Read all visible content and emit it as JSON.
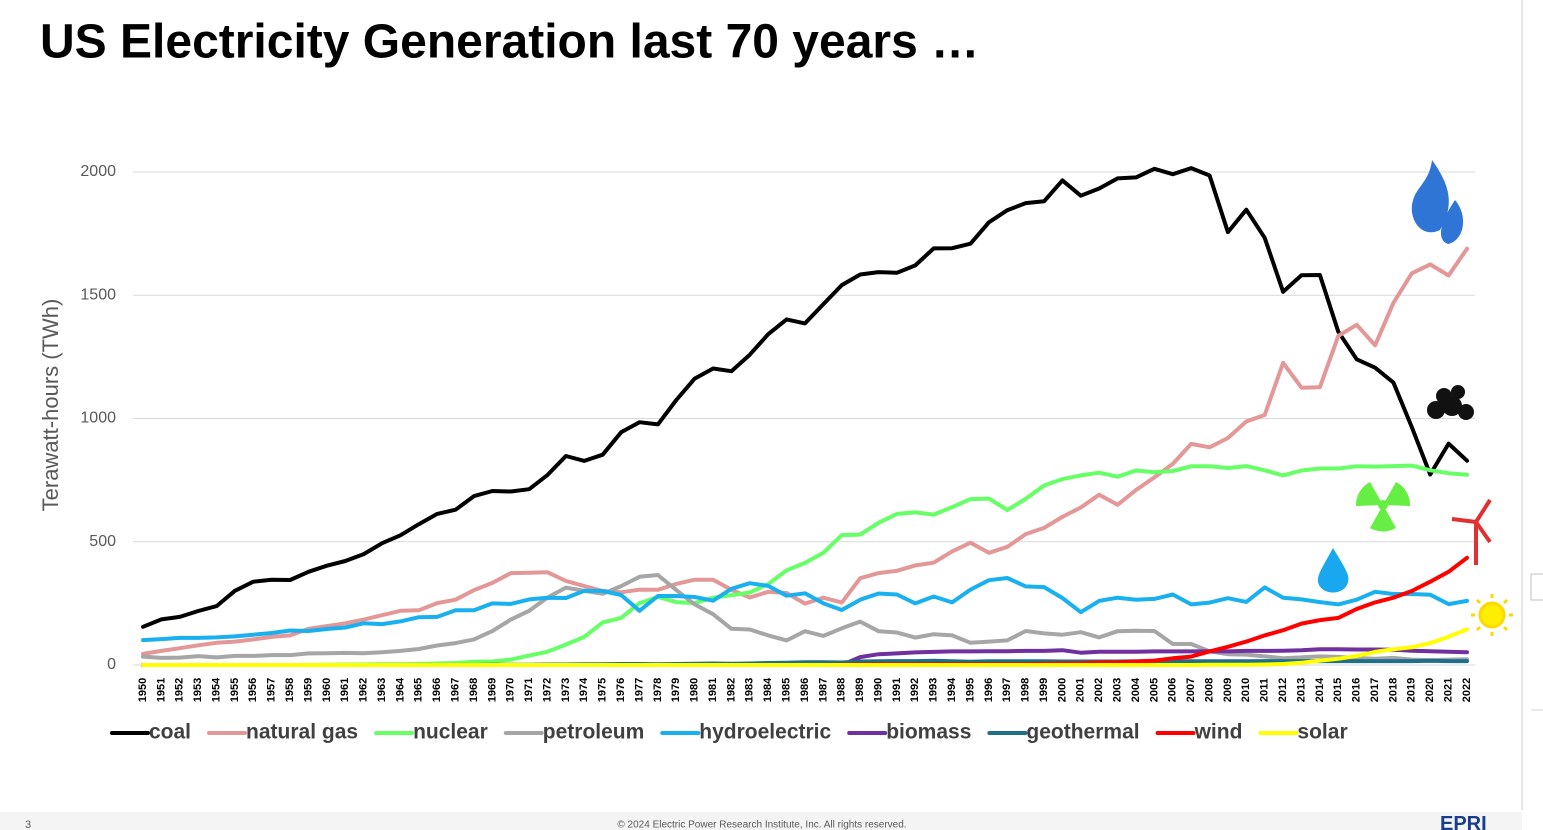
{
  "slide": {
    "title": "US Electricity Generation last 70 years …",
    "page_number": "3",
    "footer": "© 2024 Electric Power Research Institute, Inc. All rights reserved.",
    "logo": "EPRI"
  },
  "chart_data": {
    "type": "line",
    "y_label": "Terawatt-hours (TWh)",
    "categories": [
      1950,
      1951,
      1952,
      1953,
      1954,
      1955,
      1956,
      1957,
      1958,
      1959,
      1960,
      1961,
      1962,
      1963,
      1964,
      1965,
      1966,
      1967,
      1968,
      1969,
      1970,
      1971,
      1972,
      1973,
      1974,
      1975,
      1976,
      1977,
      1978,
      1979,
      1980,
      1981,
      1982,
      1983,
      1984,
      1985,
      1986,
      1987,
      1988,
      1989,
      1990,
      1991,
      1992,
      1993,
      1994,
      1995,
      1996,
      1997,
      1998,
      1999,
      2000,
      2001,
      2002,
      2003,
      2004,
      2005,
      2006,
      2007,
      2008,
      2009,
      2010,
      2011,
      2012,
      2013,
      2014,
      2015,
      2016,
      2017,
      2018,
      2019,
      2020,
      2021,
      2022
    ],
    "ylim": [
      0,
      2000
    ],
    "yticks": [
      0,
      500,
      1000,
      1500,
      2000
    ],
    "grid": true,
    "legend": "bottom",
    "series": [
      {
        "name": "coal",
        "color": "#000000",
        "values": [
          155,
          185,
          195,
          219,
          239,
          301,
          338,
          346,
          345,
          378,
          403,
          422,
          450,
          494,
          526,
          571,
          613,
          630,
          685,
          706,
          704,
          713,
          771,
          848,
          828,
          853,
          944,
          985,
          976,
          1075,
          1162,
          1203,
          1192,
          1259,
          1342,
          1402,
          1386,
          1464,
          1541,
          1584,
          1594,
          1591,
          1621,
          1690,
          1691,
          1709,
          1796,
          1845,
          1874,
          1881,
          1966,
          1904,
          1933,
          1974,
          1978,
          2013,
          1991,
          2016,
          1986,
          1756,
          1847,
          1733,
          1514,
          1581,
          1582,
          1352,
          1240,
          1206,
          1146,
          965,
          773,
          898,
          829
        ]
      },
      {
        "name": "natural gas",
        "color": "#e39797",
        "values": [
          45,
          57,
          68,
          80,
          90,
          95,
          104,
          114,
          120,
          147,
          158,
          169,
          184,
          202,
          220,
          222,
          251,
          265,
          304,
          333,
          373,
          374,
          376,
          341,
          320,
          300,
          295,
          306,
          305,
          329,
          346,
          346,
          305,
          274,
          297,
          292,
          249,
          273,
          253,
          352,
          373,
          382,
          404,
          415,
          461,
          496,
          455,
          479,
          531,
          556,
          601,
          639,
          691,
          650,
          710,
          761,
          816,
          897,
          883,
          921,
          988,
          1014,
          1226,
          1125,
          1127,
          1335,
          1380,
          1297,
          1469,
          1589,
          1625,
          1580,
          1689
        ]
      },
      {
        "name": "nuclear",
        "color": "#66ff66",
        "values": [
          0,
          0,
          0,
          0,
          0,
          0,
          0,
          0,
          0,
          0,
          1,
          2,
          2,
          3,
          3,
          4,
          6,
          8,
          13,
          14,
          22,
          38,
          54,
          83,
          114,
          173,
          191,
          251,
          276,
          255,
          251,
          273,
          283,
          294,
          328,
          384,
          414,
          455,
          527,
          529,
          577,
          613,
          619,
          610,
          640,
          673,
          675,
          629,
          674,
          728,
          754,
          769,
          780,
          764,
          789,
          782,
          787,
          806,
          806,
          799,
          807,
          790,
          769,
          789,
          797,
          797,
          806,
          805,
          807,
          809,
          790,
          778,
          772
        ]
      },
      {
        "name": "petroleum",
        "color": "#a6a6a6",
        "values": [
          34,
          29,
          30,
          36,
          31,
          37,
          37,
          40,
          40,
          47,
          48,
          49,
          48,
          52,
          57,
          65,
          79,
          89,
          104,
          138,
          184,
          220,
          274,
          314,
          301,
          289,
          320,
          358,
          365,
          304,
          246,
          206,
          147,
          144,
          120,
          100,
          137,
          118,
          149,
          176,
          137,
          132,
          111,
          125,
          120,
          90,
          95,
          100,
          138,
          128,
          123,
          133,
          112,
          137,
          139,
          138,
          85,
          85,
          55,
          44,
          42,
          35,
          27,
          31,
          35,
          33,
          28,
          25,
          29,
          22,
          20,
          22,
          23
        ]
      },
      {
        "name": "hydroelectric",
        "color": "#19b0f0",
        "values": [
          101,
          105,
          110,
          110,
          112,
          116,
          123,
          130,
          140,
          138,
          146,
          152,
          169,
          166,
          177,
          194,
          195,
          222,
          222,
          250,
          248,
          266,
          273,
          272,
          301,
          300,
          284,
          220,
          280,
          280,
          276,
          261,
          309,
          332,
          321,
          281,
          291,
          250,
          223,
          265,
          290,
          286,
          250,
          278,
          254,
          306,
          344,
          353,
          319,
          316,
          272,
          214,
          260,
          273,
          265,
          268,
          286,
          246,
          253,
          271,
          256,
          315,
          273,
          266,
          255,
          246,
          265,
          297,
          288,
          288,
          285,
          247,
          260
        ]
      },
      {
        "name": "biomass",
        "color": "#7030a0",
        "values": [
          0,
          0,
          0,
          0,
          0,
          0,
          0,
          0,
          0,
          0,
          0,
          0,
          0,
          0,
          0,
          0,
          0,
          0,
          0,
          0,
          0,
          0,
          0,
          0,
          0,
          0,
          0,
          0,
          0,
          0,
          0,
          0,
          0,
          0,
          0,
          0,
          0,
          0,
          0,
          32,
          44,
          47,
          51,
          53,
          55,
          55,
          56,
          56,
          57,
          57,
          60,
          50,
          54,
          54,
          54,
          55,
          55,
          55,
          56,
          55,
          57,
          57,
          58,
          60,
          64,
          64,
          63,
          63,
          62,
          58,
          56,
          54,
          52
        ]
      },
      {
        "name": "geothermal",
        "color": "#1f6f8b",
        "values": [
          0,
          0,
          0,
          0,
          0,
          0,
          0,
          0,
          0,
          0,
          0,
          0,
          0,
          0,
          0,
          0,
          0,
          0,
          0,
          1,
          1,
          1,
          2,
          2,
          3,
          3,
          4,
          4,
          3,
          4,
          5,
          6,
          5,
          6,
          8,
          9,
          11,
          11,
          10,
          14,
          15,
          16,
          16,
          17,
          15,
          13,
          15,
          15,
          15,
          15,
          14,
          14,
          14,
          14,
          15,
          15,
          15,
          15,
          15,
          15,
          15,
          16,
          16,
          16,
          16,
          16,
          16,
          16,
          16,
          16,
          17,
          16,
          16
        ]
      },
      {
        "name": "wind",
        "color": "#ff0000",
        "values": [
          0,
          0,
          0,
          0,
          0,
          0,
          0,
          0,
          0,
          0,
          0,
          0,
          0,
          0,
          0,
          0,
          0,
          0,
          0,
          0,
          0,
          0,
          0,
          0,
          0,
          0,
          0,
          0,
          0,
          0,
          0,
          0,
          0,
          0,
          0,
          0,
          0,
          0,
          1,
          2,
          3,
          3,
          3,
          3,
          3,
          3,
          3,
          3,
          3,
          5,
          6,
          7,
          10,
          11,
          14,
          18,
          27,
          34,
          55,
          74,
          95,
          120,
          141,
          168,
          182,
          191,
          227,
          254,
          273,
          300,
          338,
          378,
          435
        ]
      },
      {
        "name": "solar",
        "color": "#ffff00",
        "values": [
          0,
          0,
          0,
          0,
          0,
          0,
          0,
          0,
          0,
          0,
          0,
          0,
          0,
          0,
          0,
          0,
          0,
          0,
          0,
          0,
          0,
          0,
          0,
          0,
          0,
          0,
          0,
          0,
          0,
          0,
          0,
          0,
          0,
          0,
          0,
          0,
          0,
          0,
          0,
          0,
          0,
          0,
          0,
          0,
          0,
          0,
          0,
          0,
          0,
          0,
          0,
          0,
          0,
          0,
          0,
          0,
          0,
          0,
          1,
          1,
          1,
          2,
          4,
          9,
          18,
          25,
          37,
          53,
          64,
          72,
          89,
          115,
          145
        ]
      }
    ]
  }
}
